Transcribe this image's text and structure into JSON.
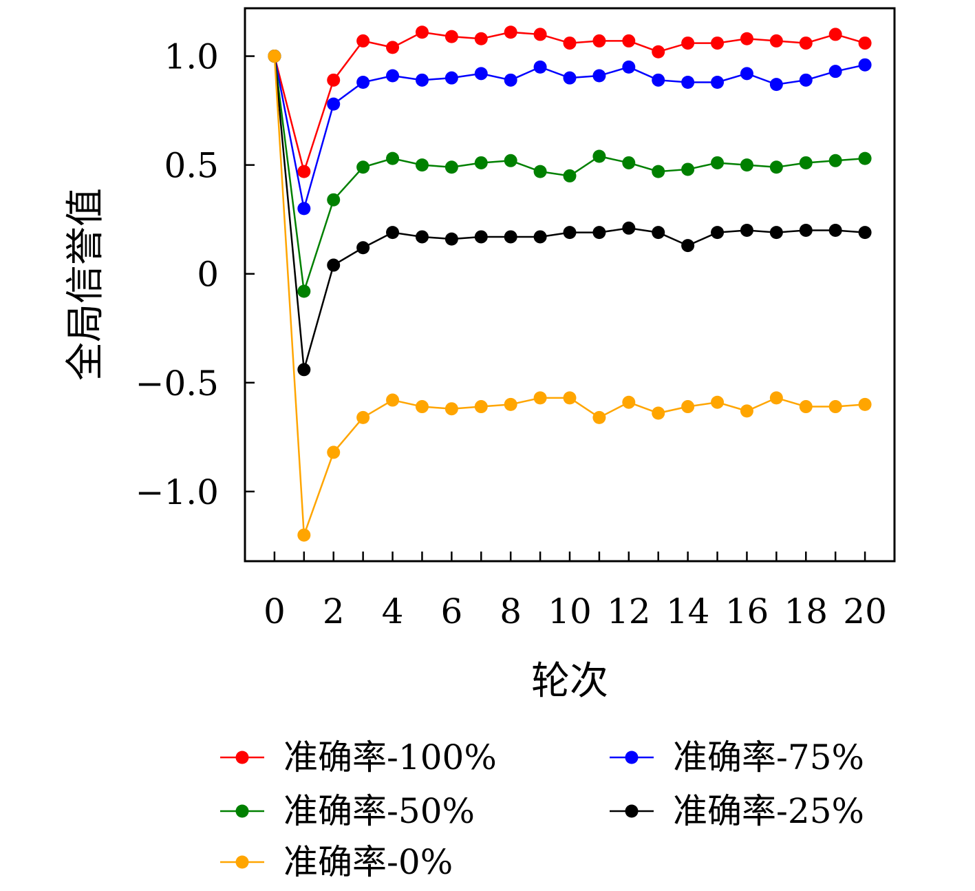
{
  "chart_data": {
    "type": "line",
    "xlabel": "轮次",
    "ylabel": "全局信誉值",
    "xlim": [
      -1,
      21
    ],
    "ylim": [
      -1.32,
      1.22
    ],
    "x_ticks": [
      0,
      2,
      4,
      6,
      8,
      10,
      12,
      14,
      16,
      18,
      20
    ],
    "x_tick_labels": [
      "0",
      "2",
      "4",
      "6",
      "8",
      "10",
      "12",
      "14",
      "16",
      "18",
      "20"
    ],
    "y_ticks": [
      1.0,
      0.5,
      0,
      -0.5,
      -1.0
    ],
    "y_tick_labels": [
      "1.0",
      "0.5",
      "0",
      "−0.5",
      "−1.0"
    ],
    "grid": false,
    "legend_position": "bottom",
    "x": [
      0,
      1,
      2,
      3,
      4,
      5,
      6,
      7,
      8,
      9,
      10,
      11,
      12,
      13,
      14,
      15,
      16,
      17,
      18,
      19,
      20
    ],
    "series": [
      {
        "name": "准确率-100%",
        "color": "#ff0000",
        "values": [
          1.0,
          0.47,
          0.89,
          1.07,
          1.04,
          1.11,
          1.09,
          1.08,
          1.11,
          1.1,
          1.06,
          1.07,
          1.07,
          1.02,
          1.06,
          1.06,
          1.08,
          1.07,
          1.06,
          1.1,
          1.06
        ]
      },
      {
        "name": "准确率-75%",
        "color": "#0000ff",
        "values": [
          1.0,
          0.3,
          0.78,
          0.88,
          0.91,
          0.89,
          0.9,
          0.92,
          0.89,
          0.95,
          0.9,
          0.91,
          0.95,
          0.89,
          0.88,
          0.88,
          0.92,
          0.87,
          0.89,
          0.93,
          0.96
        ]
      },
      {
        "name": "准确率-50%",
        "color": "#008000",
        "values": [
          1.0,
          -0.08,
          0.34,
          0.49,
          0.53,
          0.5,
          0.49,
          0.51,
          0.52,
          0.47,
          0.45,
          0.54,
          0.51,
          0.47,
          0.48,
          0.51,
          0.5,
          0.49,
          0.51,
          0.52,
          0.53
        ]
      },
      {
        "name": "准确率-25%",
        "color": "#000000",
        "values": [
          1.0,
          -0.44,
          0.04,
          0.12,
          0.19,
          0.17,
          0.16,
          0.17,
          0.17,
          0.17,
          0.19,
          0.19,
          0.21,
          0.19,
          0.13,
          0.19,
          0.2,
          0.19,
          0.2,
          0.2,
          0.19
        ]
      },
      {
        "name": "准确率-0%",
        "color": "#ffa500",
        "values": [
          1.0,
          -1.2,
          -0.82,
          -0.66,
          -0.58,
          -0.61,
          -0.62,
          -0.61,
          -0.6,
          -0.57,
          -0.57,
          -0.66,
          -0.59,
          -0.64,
          -0.61,
          -0.59,
          -0.63,
          -0.57,
          -0.61,
          -0.61,
          -0.6
        ]
      }
    ]
  }
}
